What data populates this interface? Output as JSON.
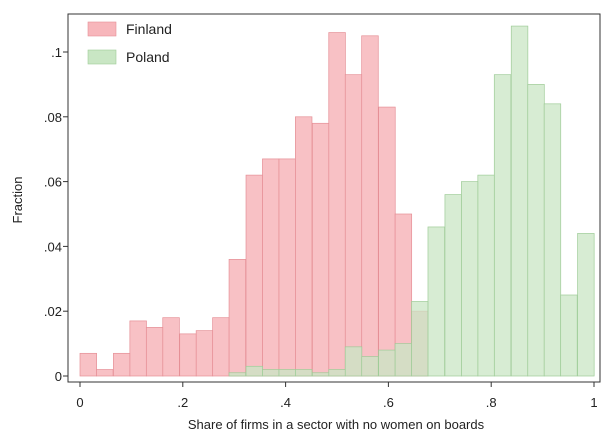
{
  "chart_data": {
    "type": "bar",
    "xlabel": "Share of firms in a sector with no women on boards",
    "ylabel": "Fraction",
    "xlim": [
      0,
      1
    ],
    "ylim": [
      0,
      0.11
    ],
    "bin_width": 0.0323,
    "x_ticks": [
      0,
      0.2,
      0.4,
      0.6,
      0.8,
      1
    ],
    "x_tick_labels": [
      "0",
      ".2",
      ".4",
      ".6",
      ".8",
      "1"
    ],
    "y_ticks": [
      0,
      0.02,
      0.04,
      0.06,
      0.08,
      0.1
    ],
    "y_tick_labels": [
      "0",
      ".02",
      ".04",
      ".06",
      ".08",
      ".1"
    ],
    "grid": false,
    "legend_position": "top-left",
    "series": [
      {
        "name": "Finland",
        "color": "#f7b6bb",
        "stroke": "#e58f96",
        "x_start": [
          0.0,
          0.032,
          0.065,
          0.097,
          0.129,
          0.161,
          0.194,
          0.226,
          0.258,
          0.29,
          0.323,
          0.355,
          0.387,
          0.419,
          0.452,
          0.484,
          0.516,
          0.548,
          0.581,
          0.613,
          0.645
        ],
        "values": [
          0.007,
          0.002,
          0.007,
          0.017,
          0.015,
          0.018,
          0.013,
          0.014,
          0.018,
          0.036,
          0.062,
          0.067,
          0.067,
          0.08,
          0.078,
          0.106,
          0.093,
          0.105,
          0.083,
          0.05,
          0.02
        ]
      },
      {
        "name": "Poland",
        "color": "#c9e6c4",
        "stroke": "#9fcc98",
        "x_start": [
          0.29,
          0.323,
          0.355,
          0.387,
          0.419,
          0.452,
          0.484,
          0.516,
          0.548,
          0.581,
          0.613,
          0.645,
          0.677,
          0.71,
          0.742,
          0.774,
          0.806,
          0.839,
          0.871,
          0.903,
          0.935,
          0.968
        ],
        "values": [
          0.001,
          0.003,
          0.002,
          0.002,
          0.002,
          0.001,
          0.002,
          0.009,
          0.006,
          0.008,
          0.01,
          0.023,
          0.046,
          0.056,
          0.06,
          0.062,
          0.093,
          0.108,
          0.09,
          0.084,
          0.025,
          0.044
        ]
      }
    ]
  }
}
